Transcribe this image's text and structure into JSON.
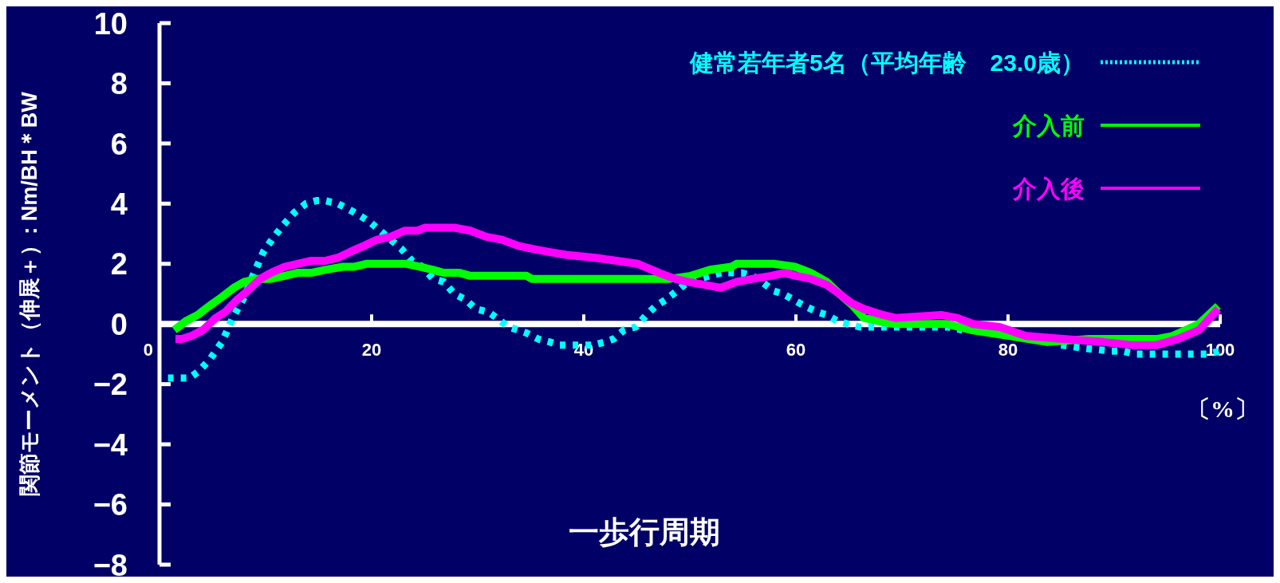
{
  "chart_data": {
    "type": "line",
    "xlabel": "一歩行周期",
    "ylabel": "関節モーメント（伸展＋）: Nm/BH＊BW",
    "xlim": [
      0,
      100
    ],
    "xticks": [
      0,
      20,
      40,
      60,
      80,
      100
    ],
    "ylim": [
      -8,
      10
    ],
    "yticks": [
      -8,
      -6,
      -4,
      -2,
      0,
      2,
      4,
      6,
      8,
      10
    ],
    "grid": false,
    "legend": "top right",
    "annotations": [
      "〔%〕"
    ],
    "series": [
      {
        "name": "健常若年者5名（平均年齢　23.0歳）",
        "color": "#00ffff",
        "line_style": "dotted",
        "x": [
          0.8,
          2,
          2.8,
          3.6,
          4.7,
          5.9,
          6.9,
          8,
          8.8,
          9.8,
          10.8,
          11.7,
          12.7,
          13.8,
          14.8,
          15.6,
          16.8,
          17.9,
          18.9,
          19.8,
          20.8,
          21.8,
          22.8,
          23.8,
          24.8,
          25.8,
          26.8,
          27.8,
          28.9,
          29.8,
          31,
          31.8,
          32.9,
          33.8,
          34.6,
          35.7,
          36.8,
          37.7,
          39.2,
          40.9,
          42,
          42.8,
          43.8,
          44.9,
          45.9,
          46.8,
          47.7,
          48.8,
          49.8,
          51.9,
          53,
          54.9,
          55.9,
          56.8,
          57.9,
          58.8,
          59.8,
          60.8,
          62,
          62.9,
          63.9,
          64.9,
          66,
          67.8,
          74.4,
          75.7,
          81.7,
          85,
          87,
          89.7,
          90.7,
          92,
          95,
          97.2,
          98.7,
          100
        ],
        "values": [
          -1.8,
          -1.8,
          -1.8,
          -1.6,
          -1.2,
          -0.6,
          0.2,
          0.9,
          1.6,
          2.4,
          2.9,
          3.3,
          3.7,
          4.0,
          4.1,
          4.1,
          4.0,
          3.8,
          3.6,
          3.4,
          3.1,
          2.8,
          2.5,
          2.1,
          1.9,
          1.5,
          1.4,
          1.0,
          0.8,
          0.5,
          0.4,
          0.2,
          -0.1,
          -0.2,
          -0.3,
          -0.5,
          -0.6,
          -0.7,
          -0.7,
          -0.7,
          -0.6,
          -0.5,
          -0.2,
          -0.1,
          0.3,
          0.6,
          0.8,
          1.1,
          1.4,
          1.6,
          1.7,
          1.7,
          1.6,
          1.4,
          1.1,
          1.0,
          0.8,
          0.6,
          0.4,
          0.3,
          0.1,
          0.0,
          -0.1,
          -0.1,
          -0.1,
          -0.2,
          null,
          -0.7,
          -0.8,
          -0.9,
          -0.9,
          -1.0,
          -1.0,
          -1.0,
          -1.0,
          -0.9
        ]
      },
      {
        "name": "介入前",
        "color": "#00ff00",
        "line_style": "solid",
        "x": [
          1.4,
          2.5,
          3.6,
          4.7,
          5.9,
          7,
          8,
          9.2,
          10.5,
          11.8,
          13,
          14.3,
          15.6,
          17.3,
          18.3,
          19.5,
          23.3,
          24.6,
          25.8,
          26.8,
          28.3,
          29.3,
          34.6,
          35.1,
          48.1,
          50.1,
          51.9,
          53.9,
          54.4,
          57.9,
          59.9,
          61.4,
          62.9,
          64.1,
          65.4,
          66.4,
          67.7,
          69.4,
          74.2,
          76.5,
          80.2,
          83.7,
          87.7,
          94,
          95.5,
          98,
          99.8
        ],
        "values": [
          -0.2,
          0.1,
          0.3,
          0.6,
          0.9,
          1.2,
          1.4,
          1.5,
          1.5,
          1.6,
          1.7,
          1.7,
          1.8,
          1.9,
          1.9,
          2.0,
          2.0,
          1.9,
          1.8,
          1.7,
          1.7,
          1.6,
          1.6,
          1.5,
          1.5,
          1.6,
          1.8,
          1.9,
          2.0,
          2.0,
          1.9,
          1.7,
          1.4,
          1.0,
          0.6,
          0.2,
          0.1,
          0.0,
          0.0,
          -0.2,
          -0.4,
          -0.6,
          -0.5,
          -0.5,
          -0.4,
          0.0,
          0.6
        ]
      },
      {
        "name": "介入後",
        "color": "#ff00ff",
        "line_style": "solid",
        "x": [
          1.5,
          2.1,
          3,
          4.1,
          5.3,
          6.2,
          7.3,
          8.3,
          9.5,
          10.5,
          11.8,
          13,
          14.3,
          15.6,
          16.8,
          18,
          19.3,
          20.5,
          21.8,
          23.1,
          24.3,
          25,
          27.8,
          29.3,
          30.8,
          32.3,
          33.8,
          35.1,
          36.6,
          38.3,
          41.1,
          43.1,
          45.1,
          47.1,
          48.6,
          49.8,
          51.4,
          52.9,
          54.4,
          55.9,
          57.7,
          58.9,
          60,
          61.4,
          62.9,
          64.1,
          65.2,
          66.4,
          68.2,
          69.4,
          73.7,
          75.2,
          76.7,
          79.2,
          81.7,
          85.2,
          89,
          91.7,
          94,
          96,
          98,
          99.8
        ],
        "values": [
          -0.5,
          -0.5,
          -0.4,
          -0.2,
          0.2,
          0.4,
          0.8,
          1.1,
          1.5,
          1.7,
          1.9,
          2.0,
          2.1,
          2.1,
          2.2,
          2.4,
          2.6,
          2.8,
          2.9,
          3.1,
          3.1,
          3.2,
          3.2,
          3.1,
          2.9,
          2.8,
          2.6,
          2.5,
          2.4,
          2.3,
          2.2,
          2.1,
          2.0,
          1.7,
          1.5,
          1.4,
          1.3,
          1.2,
          1.4,
          1.5,
          1.6,
          1.7,
          1.6,
          1.5,
          1.3,
          1.0,
          0.7,
          0.5,
          0.3,
          0.2,
          0.3,
          0.2,
          0.0,
          -0.1,
          -0.4,
          -0.5,
          -0.6,
          -0.7,
          -0.7,
          -0.5,
          -0.2,
          0.5
        ]
      }
    ]
  }
}
